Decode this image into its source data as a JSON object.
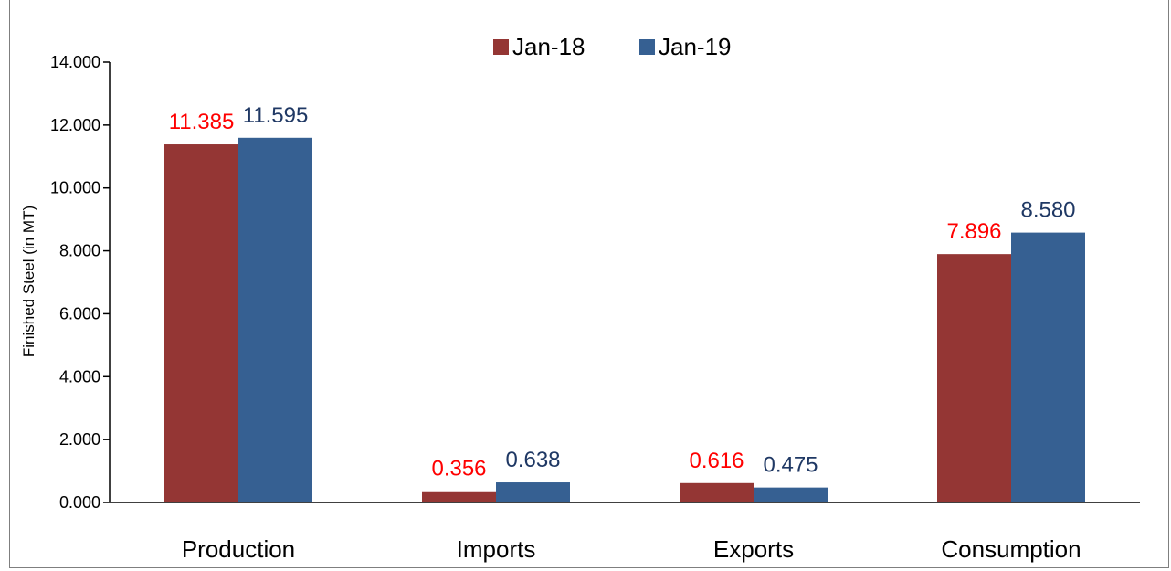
{
  "chart_data": {
    "type": "bar",
    "title": "",
    "xlabel": "",
    "ylabel": "Finished Steel (in MT)",
    "categories": [
      "Production",
      "Imports",
      "Exports",
      "Consumption"
    ],
    "series": [
      {
        "name": "Jan-18",
        "values": [
          11.385,
          0.356,
          0.616,
          7.896
        ],
        "color": "#943634",
        "label_color": "#ff0000"
      },
      {
        "name": "Jan-19",
        "values": [
          11.595,
          0.638,
          0.475,
          8.58
        ],
        "color": "#366092",
        "label_color": "#1f3864"
      }
    ],
    "value_labels": [
      [
        "11.385",
        "0.356",
        "0.616",
        "7.896"
      ],
      [
        "11.595",
        "0.638",
        "0.475",
        "8.580"
      ]
    ],
    "ylim": [
      0,
      14
    ],
    "yticks": [
      "0.000",
      "2.000",
      "4.000",
      "6.000",
      "8.000",
      "10.000",
      "12.000",
      "14.000"
    ],
    "ytick_values": [
      0,
      2,
      4,
      6,
      8,
      10,
      12,
      14
    ],
    "grid": false,
    "legend_position": "top-center"
  }
}
